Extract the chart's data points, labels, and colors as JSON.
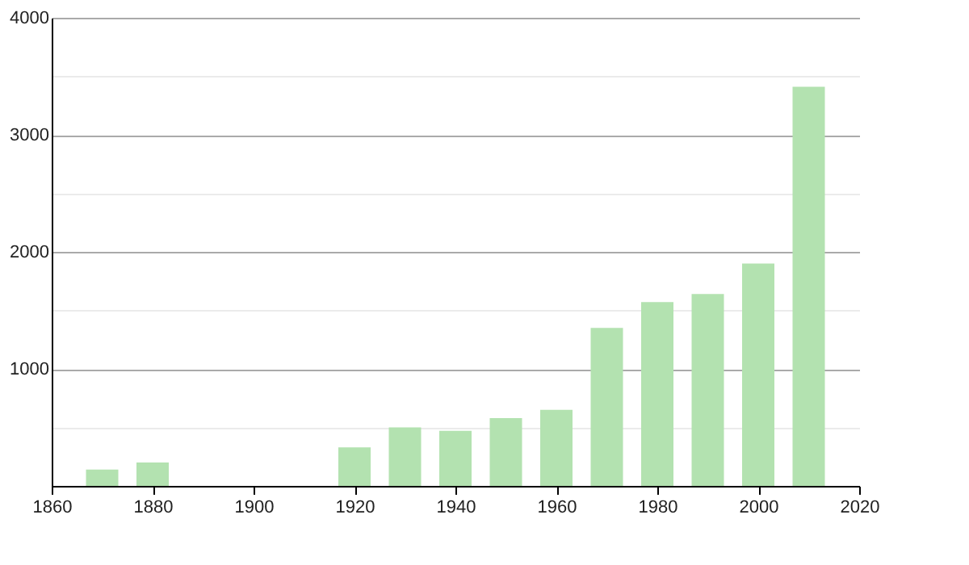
{
  "chart_data": {
    "type": "bar",
    "x": [
      1870,
      1880,
      1920,
      1930,
      1940,
      1950,
      1960,
      1970,
      1980,
      1990,
      2000,
      2010
    ],
    "values": [
      140,
      200,
      330,
      500,
      470,
      580,
      650,
      1350,
      1570,
      1640,
      1900,
      3410
    ],
    "color": "#b3e2b0",
    "xlim": [
      1860,
      2020
    ],
    "xticks": [
      1860,
      1880,
      1900,
      1920,
      1940,
      1960,
      1980,
      2000,
      2020
    ],
    "ylim": [
      0,
      4000
    ],
    "yticks": [
      {
        "value": 0,
        "label": null
      },
      {
        "value": 500,
        "label": null
      },
      1000,
      {
        "value": 1500,
        "label": null
      },
      2000,
      {
        "value": 2500,
        "label": null
      },
      3000,
      {
        "value": 3500,
        "label": null
      },
      4000
    ],
    "grid": "y"
  }
}
